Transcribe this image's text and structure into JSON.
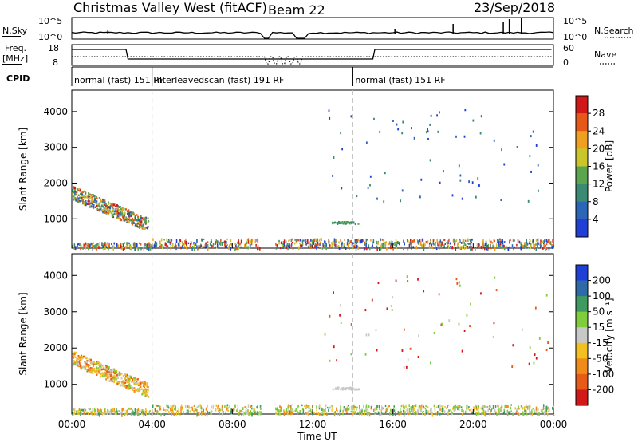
{
  "header": {
    "title": "Christmas Valley West (fitACF)",
    "beam": "Beam 22",
    "date": "23/Sep/2018"
  },
  "top_panels": {
    "nsky": {
      "label": "N.Sky",
      "ticks": [
        "10^5",
        "10^0"
      ],
      "right_label": "N.Search",
      "right_ticks": [
        "10^5",
        "10^0"
      ]
    },
    "freq": {
      "label_line1": "Freq.",
      "label_line2": "[MHz]",
      "ticks": [
        "18",
        "8"
      ],
      "right_label": "Nave",
      "right_ticks": [
        "60",
        "0"
      ]
    },
    "cpid": {
      "label": "CPID",
      "segments": [
        {
          "start_h": 0,
          "end_h": 4,
          "text": "normal (fast) 151 RF"
        },
        {
          "start_h": 4,
          "end_h": 14,
          "text": "interleavedscan (fast) 191 RF"
        },
        {
          "start_h": 14,
          "end_h": 24,
          "text": "normal (fast) 151 RF"
        }
      ]
    }
  },
  "x_axis": {
    "label": "Time UT",
    "ticks": [
      "00:00",
      "04:00",
      "08:00",
      "12:00",
      "16:00",
      "20:00",
      "00:00"
    ]
  },
  "chart_data": [
    {
      "type": "heatmap",
      "name": "Power panel",
      "ylabel": "Slant Range [km]",
      "xlim": [
        0,
        24
      ],
      "ylim": [
        180,
        4600
      ],
      "yticks": [
        "1000",
        "2000",
        "3000",
        "4000"
      ],
      "colorbar": {
        "label": "Power [dB]",
        "ticks": [
          "4",
          "8",
          "12",
          "16",
          "20",
          "24",
          "28"
        ],
        "colors": [
          "#1f3fd6",
          "#2a65b8",
          "#3a8a74",
          "#5aa54e",
          "#c9c52a",
          "#f0a020",
          "#e65818",
          "#d01818"
        ]
      },
      "features": [
        {
          "desc": "echo band",
          "t_start": 0,
          "t_end": 3.8,
          "range_start": 1750,
          "range_end": 850,
          "value": 20
        },
        {
          "desc": "near range clutter",
          "t_start": 0,
          "t_end": 24,
          "range": 300,
          "value": 8
        },
        {
          "desc": "patch",
          "t_start": 12.9,
          "t_end": 14.3,
          "range": 900,
          "value": 12
        }
      ]
    },
    {
      "type": "heatmap",
      "name": "Velocity panel",
      "ylabel": "Slant Range [km]",
      "xlim": [
        0,
        24
      ],
      "ylim": [
        180,
        4600
      ],
      "yticks": [
        "1000",
        "2000",
        "3000",
        "4000"
      ],
      "colorbar": {
        "label": "Velocity [m s⁻¹]",
        "ticks": [
          "200",
          "100",
          "50",
          "15",
          "-15",
          "-50",
          "-100",
          "-200"
        ],
        "colors": [
          "#1f3fd6",
          "#2f6aa8",
          "#3f9a62",
          "#7fcc3c",
          "#c8c8c8",
          "#f2c020",
          "#f08a18",
          "#e85a18",
          "#d21818"
        ]
      },
      "features": [
        {
          "desc": "echo band",
          "t_start": 0,
          "t_end": 3.8,
          "range_start": 1750,
          "range_end": 850,
          "value": -50
        },
        {
          "desc": "near range",
          "t_start": 0,
          "t_end": 24,
          "range": 300,
          "value": 30
        }
      ]
    }
  ]
}
